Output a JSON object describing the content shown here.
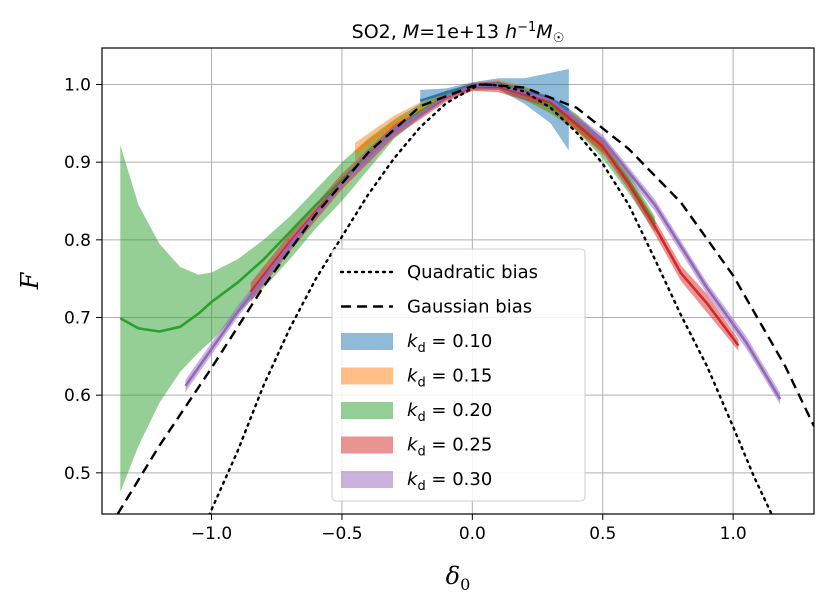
{
  "chart_data": {
    "type": "line",
    "title": "SO2, M=1e+13 h⁻¹M☉",
    "title_parts": {
      "prefix": "SO2, ",
      "mass_symbol": "M",
      "mass_value": "=1e+13 ",
      "unit_h": "h",
      "unit_exp": "−1",
      "unit_M": "M",
      "unit_sun": "☉"
    },
    "xlabel": "δ₀",
    "xlabel_parts": {
      "symbol": "δ",
      "sub": "0"
    },
    "ylabel": "F",
    "xlim": [
      -1.42,
      1.31
    ],
    "ylim": [
      0.447,
      1.047
    ],
    "xticks": [
      -1.0,
      -0.5,
      0.0,
      0.5,
      1.0
    ],
    "xtick_labels": [
      "−1.0",
      "−0.5",
      "0.0",
      "0.5",
      "1.0"
    ],
    "yticks": [
      0.5,
      0.6,
      0.7,
      0.8,
      0.9,
      1.0
    ],
    "ytick_labels": [
      "0.5",
      "0.6",
      "0.7",
      "0.8",
      "0.9",
      "1.0"
    ],
    "grid": true,
    "legend_position": "lower-center",
    "reference_curves": [
      {
        "name": "Quadratic bias",
        "style": "dotted",
        "color": "#000000",
        "x": [
          -1.01,
          -0.9,
          -0.8,
          -0.7,
          -0.6,
          -0.5,
          -0.4,
          -0.3,
          -0.2,
          -0.1,
          0.0,
          0.03,
          0.1,
          0.2,
          0.3,
          0.4,
          0.5,
          0.6,
          0.7,
          0.8,
          0.9,
          1.0,
          1.08,
          1.15
        ],
        "y": [
          0.445,
          0.528,
          0.613,
          0.686,
          0.75,
          0.804,
          0.858,
          0.905,
          0.945,
          0.976,
          0.995,
          1.0,
          0.999,
          0.991,
          0.97,
          0.938,
          0.898,
          0.845,
          0.775,
          0.703,
          0.637,
          0.559,
          0.495,
          0.445
        ]
      },
      {
        "name": "Gaussian bias",
        "style": "dashed",
        "color": "#000000",
        "x": [
          -1.36,
          -1.2,
          -1.0,
          -0.8,
          -0.6,
          -0.4,
          -0.2,
          0.0,
          0.05,
          0.2,
          0.4,
          0.6,
          0.8,
          1.0,
          1.2,
          1.31
        ],
        "y": [
          0.447,
          0.535,
          0.635,
          0.74,
          0.833,
          0.912,
          0.972,
          0.998,
          1.0,
          0.996,
          0.97,
          0.917,
          0.848,
          0.754,
          0.637,
          0.56
        ]
      }
    ],
    "series": [
      {
        "name": "k_d = 0.10",
        "legend_label": {
          "k": "k",
          "sub": "d",
          "value": " = 0.10"
        },
        "color": "#1f77b4",
        "band_x": [
          -0.2,
          -0.1,
          0.0,
          0.1,
          0.2,
          0.3,
          0.37
        ],
        "band_lower": [
          0.965,
          0.985,
          0.995,
          0.994,
          0.975,
          0.95,
          0.915
        ],
        "band_upper": [
          0.993,
          0.995,
          1.003,
          1.008,
          1.008,
          1.015,
          1.02
        ],
        "x": [
          -0.2,
          -0.1,
          0.0,
          0.1,
          0.2,
          0.3,
          0.37
        ],
        "y": [
          0.979,
          0.99,
          0.999,
          1.001,
          0.991,
          0.982,
          0.967
        ]
      },
      {
        "name": "k_d = 0.15",
        "legend_label": {
          "k": "k",
          "sub": "d",
          "value": " = 0.15"
        },
        "color": "#ff7f0e",
        "band_x": [
          -0.45,
          -0.3,
          -0.2,
          -0.1,
          0.0,
          0.1,
          0.2,
          0.3,
          0.4,
          0.5
        ],
        "band_lower": [
          0.902,
          0.94,
          0.96,
          0.98,
          0.992,
          0.993,
          0.982,
          0.963,
          0.94,
          0.91
        ],
        "band_upper": [
          0.925,
          0.96,
          0.977,
          0.992,
          1.002,
          1.006,
          0.998,
          0.983,
          0.96,
          0.93
        ],
        "x": [
          -0.45,
          -0.3,
          -0.2,
          -0.1,
          0.0,
          0.1,
          0.2,
          0.3,
          0.4,
          0.5
        ],
        "y": [
          0.913,
          0.95,
          0.968,
          0.986,
          0.997,
          1.0,
          0.99,
          0.973,
          0.95,
          0.92
        ]
      },
      {
        "name": "k_d = 0.20",
        "legend_label": {
          "k": "k",
          "sub": "d",
          "value": " = 0.20"
        },
        "color": "#2ca02c",
        "band_x": [
          -1.35,
          -1.28,
          -1.2,
          -1.12,
          -1.05,
          -1.0,
          -0.9,
          -0.8,
          -0.7,
          -0.6,
          -0.5,
          -0.4,
          -0.3,
          -0.2,
          -0.1,
          0.0,
          0.1,
          0.2,
          0.3,
          0.4,
          0.5,
          0.6,
          0.7
        ],
        "band_lower": [
          0.475,
          0.535,
          0.59,
          0.63,
          0.655,
          0.67,
          0.705,
          0.738,
          0.775,
          0.815,
          0.85,
          0.89,
          0.93,
          0.958,
          0.982,
          0.995,
          0.993,
          0.98,
          0.963,
          0.94,
          0.905,
          0.86,
          0.81
        ],
        "band_upper": [
          0.922,
          0.845,
          0.795,
          0.765,
          0.755,
          0.758,
          0.775,
          0.8,
          0.83,
          0.865,
          0.9,
          0.93,
          0.955,
          0.975,
          0.99,
          1.0,
          1.004,
          0.997,
          0.984,
          0.962,
          0.93,
          0.885,
          0.83
        ],
        "x": [
          -1.35,
          -1.28,
          -1.2,
          -1.12,
          -1.05,
          -1.0,
          -0.9,
          -0.8,
          -0.7,
          -0.6,
          -0.5,
          -0.4,
          -0.3,
          -0.2,
          -0.1,
          0.0,
          0.1,
          0.2,
          0.3,
          0.4,
          0.5,
          0.6,
          0.7
        ],
        "y": [
          0.699,
          0.686,
          0.682,
          0.688,
          0.705,
          0.72,
          0.745,
          0.775,
          0.81,
          0.845,
          0.877,
          0.91,
          0.94,
          0.965,
          0.986,
          0.998,
          1.0,
          0.99,
          0.973,
          0.95,
          0.92,
          0.875,
          0.82
        ]
      },
      {
        "name": "k_d = 0.25",
        "legend_label": {
          "k": "k",
          "sub": "d",
          "value": " = 0.25"
        },
        "color": "#d62728",
        "band_x": [
          -0.85,
          -0.7,
          -0.5,
          -0.3,
          -0.1,
          0.0,
          0.1,
          0.3,
          0.5,
          0.6,
          0.7,
          0.8,
          0.9,
          1.02
        ],
        "band_lower": [
          0.72,
          0.785,
          0.865,
          0.932,
          0.978,
          0.992,
          0.99,
          0.97,
          0.912,
          0.864,
          0.807,
          0.747,
          0.706,
          0.657
        ],
        "band_upper": [
          0.745,
          0.808,
          0.885,
          0.948,
          0.99,
          1.002,
          1.004,
          0.983,
          0.928,
          0.88,
          0.826,
          0.767,
          0.73,
          0.672
        ],
        "x": [
          -0.85,
          -0.7,
          -0.5,
          -0.3,
          -0.1,
          0.0,
          0.1,
          0.3,
          0.5,
          0.6,
          0.7,
          0.8,
          0.9,
          1.02
        ],
        "y": [
          0.733,
          0.797,
          0.875,
          0.94,
          0.984,
          0.997,
          0.997,
          0.977,
          0.92,
          0.872,
          0.817,
          0.757,
          0.718,
          0.664
        ]
      },
      {
        "name": "k_d = 0.30",
        "legend_label": {
          "k": "k",
          "sub": "d",
          "value": " = 0.30"
        },
        "color": "#9467bd",
        "band_x": [
          -1.1,
          -0.9,
          -0.7,
          -0.5,
          -0.3,
          -0.1,
          0.0,
          0.1,
          0.3,
          0.5,
          0.7,
          0.9,
          1.05,
          1.18
        ],
        "band_lower": [
          0.604,
          0.7,
          0.788,
          0.868,
          0.934,
          0.98,
          0.993,
          0.993,
          0.975,
          0.923,
          0.837,
          0.73,
          0.66,
          0.588
        ],
        "band_upper": [
          0.62,
          0.715,
          0.8,
          0.88,
          0.946,
          0.99,
          1.002,
          1.004,
          0.985,
          0.935,
          0.852,
          0.745,
          0.676,
          0.603
        ],
        "x": [
          -1.1,
          -0.9,
          -0.7,
          -0.5,
          -0.3,
          -0.1,
          0.0,
          0.1,
          0.3,
          0.5,
          0.7,
          0.9,
          1.05,
          1.18
        ],
        "y": [
          0.612,
          0.707,
          0.794,
          0.874,
          0.94,
          0.985,
          0.998,
          0.999,
          0.98,
          0.929,
          0.845,
          0.738,
          0.668,
          0.595
        ]
      }
    ]
  }
}
